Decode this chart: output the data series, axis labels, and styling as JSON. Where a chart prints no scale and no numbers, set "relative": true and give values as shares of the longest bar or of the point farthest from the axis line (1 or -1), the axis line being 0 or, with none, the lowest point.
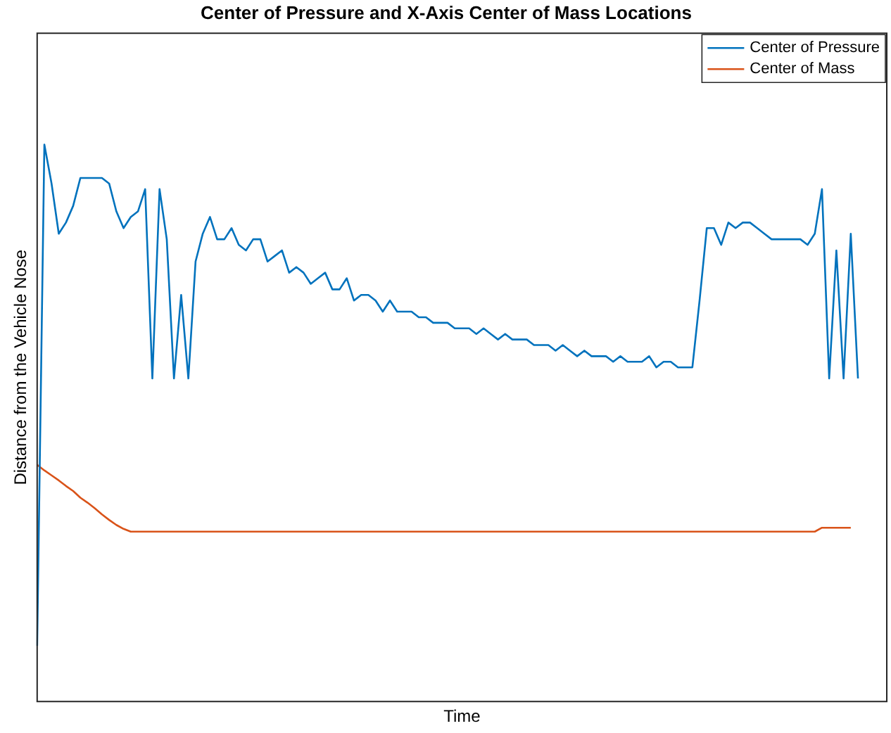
{
  "chart_data": {
    "type": "line",
    "title": "Center of Pressure and X-Axis Center of Mass Locations",
    "xlabel": "Time",
    "ylabel": "Distance from the Vehicle Nose",
    "relative": true,
    "tick_labels": false,
    "grid": false,
    "legend": "top right",
    "marker": "none",
    "line_style": "solid",
    "categories": [
      null,
      null,
      null,
      null,
      null,
      null,
      null,
      null,
      null,
      null,
      null,
      null,
      null,
      null,
      null,
      null,
      null,
      null,
      null,
      null,
      null,
      null,
      null,
      null,
      null,
      null,
      null,
      null,
      null,
      null,
      null,
      null,
      null,
      null,
      null,
      null,
      null,
      null,
      null,
      null,
      null,
      null,
      null,
      null,
      null,
      null,
      null,
      null,
      null,
      null,
      null,
      null,
      null,
      null,
      null,
      null,
      null,
      null,
      null,
      null,
      null,
      null,
      null,
      null,
      null,
      null,
      null,
      null,
      null,
      null,
      null,
      null,
      null,
      null,
      null,
      null,
      null,
      null,
      null,
      null,
      null,
      null,
      null,
      null,
      null,
      null,
      null,
      null,
      null,
      null,
      null,
      null,
      null,
      null,
      null,
      null,
      null,
      null,
      null,
      null,
      null,
      null,
      null,
      null,
      null,
      null,
      null,
      null,
      null,
      null,
      null,
      null,
      null,
      null,
      null,
      null,
      null,
      null,
      null
    ],
    "series": [
      {
        "name": "Center of Pressure",
        "color": "#0072bd",
        "values": [
          0.1,
          1,
          0.93,
          0.84,
          0.86,
          0.89,
          0.94,
          0.94,
          0.94,
          0.94,
          0.93,
          0.88,
          0.85,
          0.87,
          0.88,
          0.92,
          0.58,
          0.92,
          0.83,
          0.58,
          0.73,
          0.58,
          0.79,
          0.84,
          0.87,
          0.83,
          0.83,
          0.85,
          0.82,
          0.81,
          0.83,
          0.83,
          0.79,
          0.8,
          0.81,
          0.77,
          0.78,
          0.77,
          0.75,
          0.76,
          0.77,
          0.74,
          0.74,
          0.76,
          0.72,
          0.73,
          0.73,
          0.72,
          0.7,
          0.72,
          0.7,
          0.7,
          0.7,
          0.69,
          0.69,
          0.68,
          0.68,
          0.68,
          0.67,
          0.67,
          0.67,
          0.66,
          0.67,
          0.66,
          0.65,
          0.66,
          0.65,
          0.65,
          0.65,
          0.64,
          0.64,
          0.64,
          0.63,
          0.64,
          0.63,
          0.62,
          0.63,
          0.62,
          0.62,
          0.62,
          0.61,
          0.62,
          0.61,
          0.61,
          0.61,
          0.62,
          0.6,
          0.61,
          0.61,
          0.6,
          0.6,
          0.6,
          0.72,
          0.85,
          0.85,
          0.82,
          0.86,
          0.85,
          0.86,
          0.86,
          0.85,
          0.84,
          0.83,
          0.83,
          0.83,
          0.83,
          0.83,
          0.82,
          0.84,
          0.92,
          0.58,
          0.81,
          0.58,
          0.84,
          0.58,
          null,
          null,
          null,
          null
        ]
      },
      {
        "name": "Center of Mass",
        "color": "#d95319",
        "values": [
          0.425,
          0.415,
          0.406,
          0.397,
          0.387,
          0.378,
          0.366,
          0.357,
          0.347,
          0.336,
          0.326,
          0.317,
          0.31,
          0.305,
          0.305,
          0.305,
          0.305,
          0.305,
          0.305,
          0.305,
          0.305,
          0.305,
          0.305,
          0.305,
          0.305,
          0.305,
          0.305,
          0.305,
          0.305,
          0.305,
          0.305,
          0.305,
          0.305,
          0.305,
          0.305,
          0.305,
          0.305,
          0.305,
          0.305,
          0.305,
          0.305,
          0.305,
          0.305,
          0.305,
          0.305,
          0.305,
          0.305,
          0.305,
          0.305,
          0.305,
          0.305,
          0.305,
          0.305,
          0.305,
          0.305,
          0.305,
          0.305,
          0.305,
          0.305,
          0.305,
          0.305,
          0.305,
          0.305,
          0.305,
          0.305,
          0.305,
          0.305,
          0.305,
          0.305,
          0.305,
          0.305,
          0.305,
          0.305,
          0.305,
          0.305,
          0.305,
          0.305,
          0.305,
          0.305,
          0.305,
          0.305,
          0.305,
          0.305,
          0.305,
          0.305,
          0.305,
          0.305,
          0.305,
          0.305,
          0.305,
          0.305,
          0.305,
          0.305,
          0.305,
          0.305,
          0.305,
          0.305,
          0.305,
          0.305,
          0.305,
          0.305,
          0.305,
          0.305,
          0.305,
          0.305,
          0.305,
          0.305,
          0.305,
          0.305,
          0.312,
          0.312,
          0.312,
          0.312,
          0.312,
          null,
          null,
          null,
          null,
          null
        ]
      }
    ]
  }
}
